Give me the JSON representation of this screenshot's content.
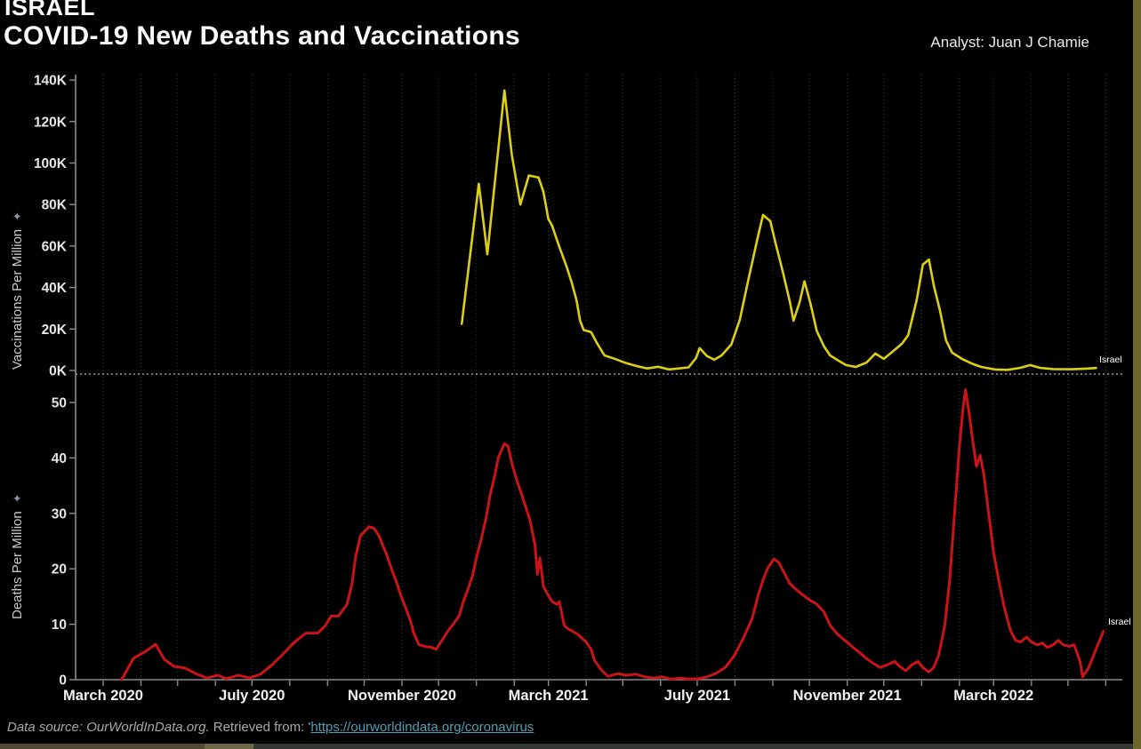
{
  "header": {
    "suptitle": "ISRAEL",
    "title": "COVID-19 New Deaths and Vaccinations",
    "analyst": "Analyst: Juan J Chamie"
  },
  "colors": {
    "vaccinations_line": "#ddcf12",
    "deaths_line": "#cb1417",
    "background": "#000000",
    "grid": "#3a3a3a",
    "axis": "#8c8c8c",
    "zero_line": "#e8e8e8",
    "tick_label": "#e6e6e6",
    "frame_edge": "#6b672e",
    "link": "#4d9fb2"
  },
  "x_axis": {
    "start_month": "2020-03",
    "months_total": 28,
    "label_every": 4,
    "tick_labels": [
      "March 2020",
      "July 2020",
      "November 2020",
      "March 2021",
      "July 2021",
      "November 2021",
      "March 2022"
    ]
  },
  "chart_data": [
    {
      "type": "line",
      "panel": "vaccinations",
      "ylabel": "Vaccinations Per Million",
      "values_unit": "thousands per million (weekly)",
      "ylim_k": [
        0,
        140
      ],
      "y_tick_labels": [
        "0K",
        "20K",
        "40K",
        "60K",
        "80K",
        "100K",
        "120K",
        "140K"
      ],
      "end_label": "Israel",
      "series": [
        {
          "name": "Israel",
          "color_key": "vaccinations_line",
          "points": [
            [
              "2020-12-20",
              22.5
            ],
            [
              "2021-01-03",
              90
            ],
            [
              "2021-01-10",
              56
            ],
            [
              "2021-01-24",
              135
            ],
            [
              "2021-01-30",
              104
            ],
            [
              "2021-02-06",
              80
            ],
            [
              "2021-02-13",
              94
            ],
            [
              "2021-02-21",
              93
            ],
            [
              "2021-02-25",
              86
            ],
            [
              "2021-03-01",
              73
            ],
            [
              "2021-03-04",
              70
            ],
            [
              "2021-03-08",
              63
            ],
            [
              "2021-03-11",
              58
            ],
            [
              "2021-03-16",
              50
            ],
            [
              "2021-03-20",
              42.6
            ],
            [
              "2021-03-24",
              34
            ],
            [
              "2021-03-27",
              24
            ],
            [
              "2021-03-30",
              19.5
            ],
            [
              "2021-04-05",
              18.5
            ],
            [
              "2021-04-10",
              13
            ],
            [
              "2021-04-16",
              7.3
            ],
            [
              "2021-04-25",
              5.5
            ],
            [
              "2021-05-04",
              3.5
            ],
            [
              "2021-05-12",
              2.2
            ],
            [
              "2021-05-21",
              1.0
            ],
            [
              "2021-05-30",
              1.8
            ],
            [
              "2021-06-08",
              0.5
            ],
            [
              "2021-06-16",
              1.0
            ],
            [
              "2021-06-24",
              1.5
            ],
            [
              "2021-06-30",
              6.0
            ],
            [
              "2021-07-03",
              10.8
            ],
            [
              "2021-07-09",
              7.0
            ],
            [
              "2021-07-15",
              5.2
            ],
            [
              "2021-07-21",
              7.3
            ],
            [
              "2021-07-29",
              12.5
            ],
            [
              "2021-08-05",
              24.5
            ],
            [
              "2021-08-12",
              44
            ],
            [
              "2021-08-20",
              65
            ],
            [
              "2021-08-24",
              75
            ],
            [
              "2021-08-30",
              72
            ],
            [
              "2021-09-03",
              62
            ],
            [
              "2021-09-09",
              48
            ],
            [
              "2021-09-15",
              33
            ],
            [
              "2021-09-18",
              24
            ],
            [
              "2021-09-23",
              33
            ],
            [
              "2021-09-27",
              43
            ],
            [
              "2021-10-02",
              32
            ],
            [
              "2021-10-07",
              19
            ],
            [
              "2021-10-13",
              11.6
            ],
            [
              "2021-10-18",
              7.3
            ],
            [
              "2021-10-25",
              4.7
            ],
            [
              "2021-10-31",
              2.6
            ],
            [
              "2021-11-08",
              1.7
            ],
            [
              "2021-11-17",
              3.9
            ],
            [
              "2021-11-24",
              8.2
            ],
            [
              "2021-12-01",
              5.6
            ],
            [
              "2021-12-08",
              9.0
            ],
            [
              "2021-12-16",
              13
            ],
            [
              "2021-12-21",
              17
            ],
            [
              "2021-12-28",
              34
            ],
            [
              "2022-01-02",
              51
            ],
            [
              "2022-01-07",
              53.5
            ],
            [
              "2022-01-11",
              41
            ],
            [
              "2022-01-16",
              29
            ],
            [
              "2022-01-21",
              14.6
            ],
            [
              "2022-01-26",
              8.6
            ],
            [
              "2022-02-03",
              5.6
            ],
            [
              "2022-02-11",
              3.4
            ],
            [
              "2022-02-19",
              1.7
            ],
            [
              "2022-03-02",
              0.5
            ],
            [
              "2022-03-12",
              0.3
            ],
            [
              "2022-03-23",
              1.3
            ],
            [
              "2022-03-31",
              2.6
            ],
            [
              "2022-04-08",
              1.3
            ],
            [
              "2022-04-19",
              0.7
            ],
            [
              "2022-05-04",
              0.6
            ],
            [
              "2022-05-16",
              0.9
            ],
            [
              "2022-05-24",
              1.2
            ]
          ]
        }
      ]
    },
    {
      "type": "line",
      "panel": "deaths",
      "ylabel": "Deaths Per Million",
      "values_unit": "per million (weekly)",
      "ylim": [
        0,
        50
      ],
      "y_tick_labels": [
        "0",
        "10",
        "20",
        "30",
        "40",
        "50"
      ],
      "end_label": "Israel",
      "series": [
        {
          "name": "Israel",
          "color_key": "deaths_line",
          "points": [
            [
              "2020-03-16",
              0
            ],
            [
              "2020-03-26",
              3.9
            ],
            [
              "2020-04-04",
              5.0
            ],
            [
              "2020-04-13",
              6.4
            ],
            [
              "2020-04-20",
              3.7
            ],
            [
              "2020-04-28",
              2.4
            ],
            [
              "2020-05-07",
              2.1
            ],
            [
              "2020-05-16",
              1.1
            ],
            [
              "2020-05-25",
              0.3
            ],
            [
              "2020-06-03",
              0.8
            ],
            [
              "2020-06-10",
              0.2
            ],
            [
              "2020-06-20",
              0.8
            ],
            [
              "2020-06-29",
              0.3
            ],
            [
              "2020-07-08",
              1.0
            ],
            [
              "2020-07-17",
              2.6
            ],
            [
              "2020-07-26",
              4.5
            ],
            [
              "2020-08-04",
              6.6
            ],
            [
              "2020-08-14",
              8.4
            ],
            [
              "2020-08-24",
              8.4
            ],
            [
              "2020-08-30",
              9.7
            ],
            [
              "2020-09-04",
              11.5
            ],
            [
              "2020-09-10",
              11.5
            ],
            [
              "2020-09-17",
              13.6
            ],
            [
              "2020-09-21",
              17.3
            ],
            [
              "2020-09-24",
              22.2
            ],
            [
              "2020-09-28",
              26.0
            ],
            [
              "2020-10-05",
              27.6
            ],
            [
              "2020-10-09",
              27.3
            ],
            [
              "2020-10-13",
              26.0
            ],
            [
              "2020-10-20",
              22.2
            ],
            [
              "2020-10-24",
              19.6
            ],
            [
              "2020-10-28",
              17.3
            ],
            [
              "2020-10-31",
              15.2
            ],
            [
              "2020-11-04",
              13.0
            ],
            [
              "2020-11-08",
              10.6
            ],
            [
              "2020-11-11",
              8.2
            ],
            [
              "2020-11-15",
              6.3
            ],
            [
              "2020-11-20",
              6.0
            ],
            [
              "2020-11-24",
              5.9
            ],
            [
              "2020-11-29",
              5.5
            ],
            [
              "2020-12-03",
              6.8
            ],
            [
              "2020-12-07",
              8.2
            ],
            [
              "2020-12-10",
              9.2
            ],
            [
              "2020-12-14",
              10.3
            ],
            [
              "2020-12-18",
              11.6
            ],
            [
              "2020-12-21",
              13.9
            ],
            [
              "2020-12-25",
              16.3
            ],
            [
              "2020-12-29",
              18.9
            ],
            [
              "2021-01-01",
              22.0
            ],
            [
              "2021-01-05",
              25.4
            ],
            [
              "2021-01-09",
              29.3
            ],
            [
              "2021-01-12",
              33.1
            ],
            [
              "2021-01-16",
              36.8
            ],
            [
              "2021-01-19",
              40.1
            ],
            [
              "2021-01-24",
              42.6
            ],
            [
              "2021-01-27",
              42.1
            ],
            [
              "2021-01-30",
              39.1
            ],
            [
              "2021-02-03",
              36.0
            ],
            [
              "2021-02-07",
              33.5
            ],
            [
              "2021-02-10",
              31.4
            ],
            [
              "2021-02-14",
              28.7
            ],
            [
              "2021-02-18",
              24.4
            ],
            [
              "2021-02-20",
              19.0
            ],
            [
              "2021-02-22",
              22.0
            ],
            [
              "2021-02-25",
              16.8
            ],
            [
              "2021-03-01",
              15.2
            ],
            [
              "2021-03-04",
              14.1
            ],
            [
              "2021-03-08",
              13.6
            ],
            [
              "2021-03-10",
              14.1
            ],
            [
              "2021-03-14",
              9.8
            ],
            [
              "2021-03-17",
              9.2
            ],
            [
              "2021-03-21",
              8.7
            ],
            [
              "2021-03-25",
              8.2
            ],
            [
              "2021-03-28",
              7.6
            ],
            [
              "2021-04-01",
              6.8
            ],
            [
              "2021-04-05",
              5.5
            ],
            [
              "2021-04-08",
              3.4
            ],
            [
              "2021-04-12",
              2.2
            ],
            [
              "2021-04-15",
              1.4
            ],
            [
              "2021-04-19",
              0.6
            ],
            [
              "2021-04-27",
              1.1
            ],
            [
              "2021-05-04",
              0.8
            ],
            [
              "2021-05-12",
              1.0
            ],
            [
              "2021-05-19",
              0.5
            ],
            [
              "2021-05-26",
              0.3
            ],
            [
              "2021-06-03",
              0.5
            ],
            [
              "2021-06-10",
              0.1
            ],
            [
              "2021-06-17",
              0.3
            ],
            [
              "2021-06-24",
              0.1
            ],
            [
              "2021-07-02",
              0.2
            ],
            [
              "2021-07-09",
              0.5
            ],
            [
              "2021-07-16",
              1.1
            ],
            [
              "2021-07-24",
              2.2
            ],
            [
              "2021-07-31",
              4.2
            ],
            [
              "2021-08-07",
              7.1
            ],
            [
              "2021-08-15",
              11.0
            ],
            [
              "2021-08-20",
              15.2
            ],
            [
              "2021-08-24",
              18.0
            ],
            [
              "2021-08-28",
              20.2
            ],
            [
              "2021-09-02",
              21.8
            ],
            [
              "2021-09-06",
              21.1
            ],
            [
              "2021-09-11",
              19.0
            ],
            [
              "2021-09-15",
              17.3
            ],
            [
              "2021-09-20",
              16.3
            ],
            [
              "2021-09-25",
              15.4
            ],
            [
              "2021-10-01",
              14.4
            ],
            [
              "2021-10-07",
              13.6
            ],
            [
              "2021-10-13",
              12.2
            ],
            [
              "2021-10-18",
              9.8
            ],
            [
              "2021-10-24",
              8.2
            ],
            [
              "2021-10-30",
              7.1
            ],
            [
              "2021-11-05",
              6.0
            ],
            [
              "2021-11-11",
              4.9
            ],
            [
              "2021-11-17",
              3.8
            ],
            [
              "2021-11-22",
              3.0
            ],
            [
              "2021-11-28",
              2.2
            ],
            [
              "2021-12-04",
              2.7
            ],
            [
              "2021-12-10",
              3.3
            ],
            [
              "2021-12-14",
              2.4
            ],
            [
              "2021-12-19",
              1.6
            ],
            [
              "2021-12-24",
              2.7
            ],
            [
              "2021-12-29",
              3.3
            ],
            [
              "2022-01-02",
              2.2
            ],
            [
              "2022-01-07",
              1.4
            ],
            [
              "2022-01-11",
              2.2
            ],
            [
              "2022-01-15",
              4.4
            ],
            [
              "2022-01-20",
              9.8
            ],
            [
              "2022-01-24",
              18.0
            ],
            [
              "2022-01-28",
              30.0
            ],
            [
              "2022-02-01",
              42.0
            ],
            [
              "2022-02-04",
              49.0
            ],
            [
              "2022-02-06",
              52.3
            ],
            [
              "2022-02-09",
              48.0
            ],
            [
              "2022-02-12",
              43.0
            ],
            [
              "2022-02-15",
              38.5
            ],
            [
              "2022-02-18",
              40.5
            ],
            [
              "2022-02-21",
              37.0
            ],
            [
              "2022-02-25",
              30.0
            ],
            [
              "2022-03-01",
              23.0
            ],
            [
              "2022-03-06",
              17.0
            ],
            [
              "2022-03-10",
              12.8
            ],
            [
              "2022-03-15",
              8.8
            ],
            [
              "2022-03-19",
              7.1
            ],
            [
              "2022-03-23",
              6.8
            ],
            [
              "2022-03-28",
              7.7
            ],
            [
              "2022-04-01",
              6.8
            ],
            [
              "2022-04-06",
              6.3
            ],
            [
              "2022-04-10",
              6.6
            ],
            [
              "2022-04-14",
              5.8
            ],
            [
              "2022-04-19",
              6.3
            ],
            [
              "2022-04-23",
              7.1
            ],
            [
              "2022-04-27",
              6.3
            ],
            [
              "2022-05-02",
              6.0
            ],
            [
              "2022-05-06",
              6.3
            ],
            [
              "2022-05-11",
              3.2
            ],
            [
              "2022-05-13",
              0.5
            ],
            [
              "2022-05-18",
              2.2
            ],
            [
              "2022-05-24",
              5.5
            ],
            [
              "2022-05-30",
              8.7
            ]
          ]
        }
      ]
    }
  ],
  "footer": {
    "source": "Data source: OurWorldInData.org.",
    "retrieved": " Retrieved from: '",
    "link_text": "https://ourworldindata.org/coronavirus"
  }
}
